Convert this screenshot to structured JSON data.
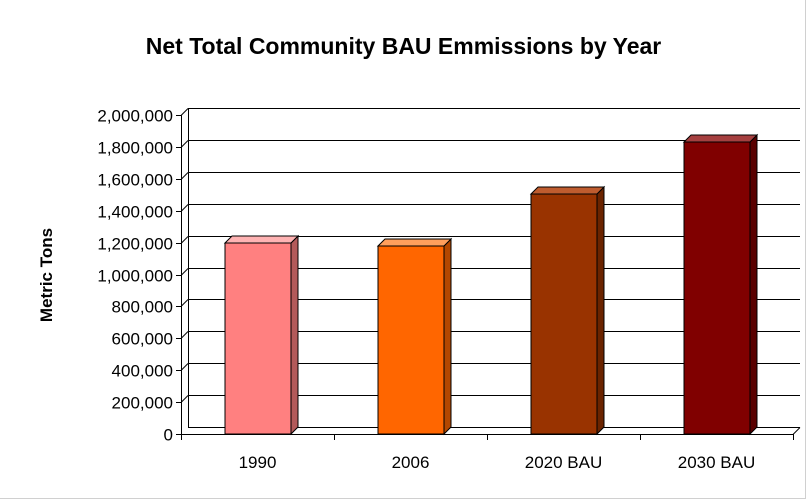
{
  "chart_data": {
    "type": "bar",
    "title": "Net Total Community BAU Emmissions by Year",
    "xlabel": "",
    "ylabel": "Metric Tons",
    "categories": [
      "1990",
      "2006",
      "2020 BAU",
      "2030 BAU"
    ],
    "values": [
      1200000,
      1180000,
      1505000,
      1830000
    ],
    "ylim": [
      0,
      2000000
    ],
    "yticks": [
      0,
      200000,
      400000,
      600000,
      800000,
      1000000,
      1200000,
      1400000,
      1600000,
      1800000,
      2000000
    ],
    "ytick_labels": [
      "0",
      "200,000",
      "400,000",
      "600,000",
      "800,000",
      "1,000,000",
      "1,200,000",
      "1,400,000",
      "1,600,000",
      "1,800,000",
      "2,000,000"
    ],
    "grid": true,
    "legend": "none",
    "bar_colors": [
      "#ff8080",
      "#ff6600",
      "#993300",
      "#800000"
    ],
    "bar_side_colors": [
      "#b35a5a",
      "#b34700",
      "#6b2400",
      "#590000"
    ],
    "bar_top_colors": [
      "#ffb3b3",
      "#ff9f5c",
      "#bf5c2e",
      "#a64040"
    ]
  }
}
